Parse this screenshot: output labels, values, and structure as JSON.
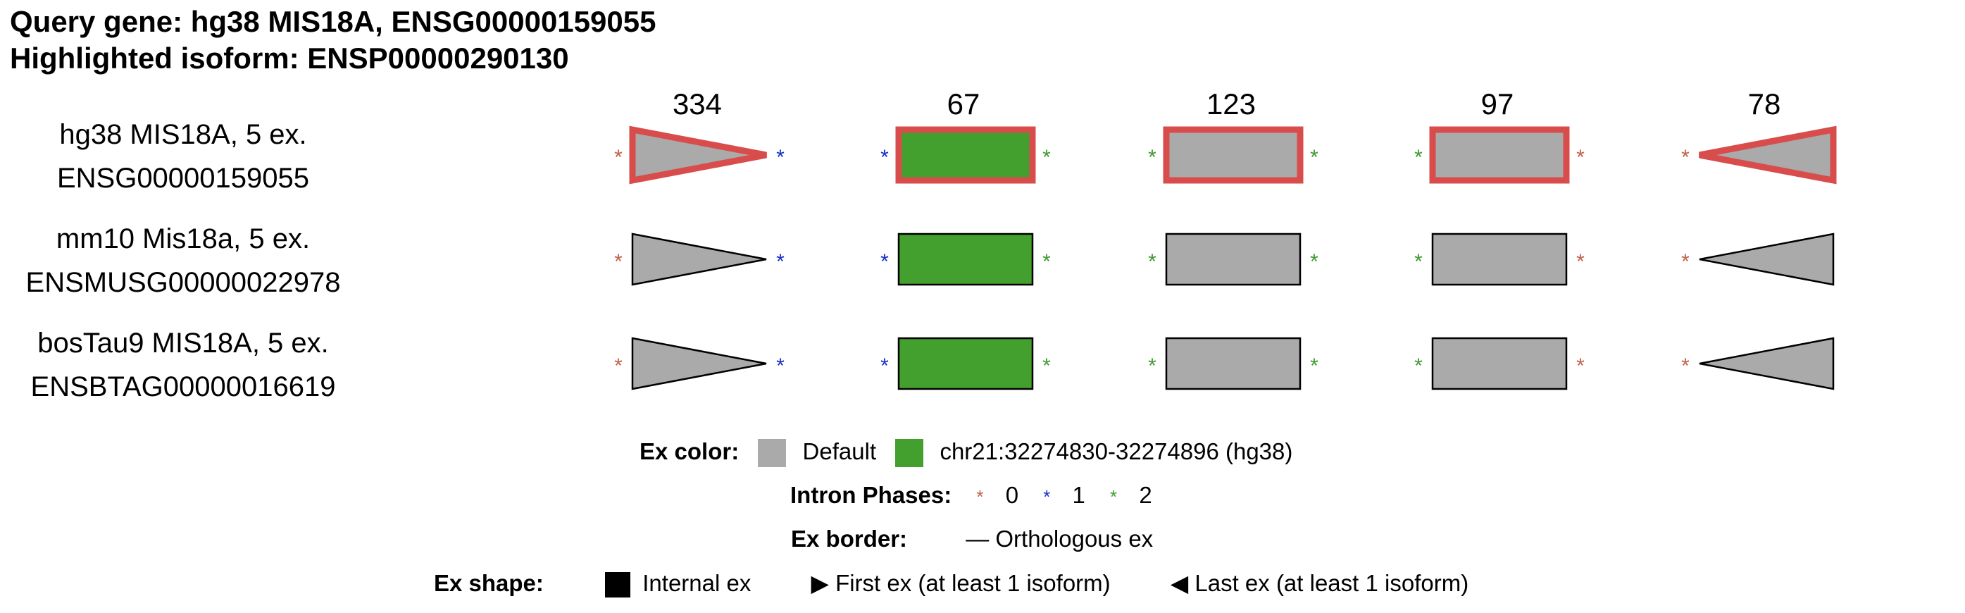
{
  "title": {
    "query_line": "Query gene: hg38 MIS18A, ENSG00000159055",
    "isoform_line": "Highlighted isoform: ENSP00000290130"
  },
  "exon_lengths": [
    "334",
    "67",
    "123",
    "97",
    "78"
  ],
  "genes": [
    {
      "name": "hg38 MIS18A, 5 ex.",
      "id": "ENSG00000159055",
      "highlighted": true
    },
    {
      "name": "mm10 Mis18a, 5 ex.",
      "id": "ENSMUSG00000022978",
      "highlighted": false
    },
    {
      "name": "bosTau9 MIS18A, 5 ex.",
      "id": "ENSBTAG00000016619",
      "highlighted": false
    }
  ],
  "exons": [
    {
      "shape": "first",
      "color": "default",
      "left_phase": "0",
      "right_phase": "1"
    },
    {
      "shape": "internal",
      "color": "green",
      "left_phase": "1",
      "right_phase": "2"
    },
    {
      "shape": "internal",
      "color": "default",
      "left_phase": "2",
      "right_phase": "2"
    },
    {
      "shape": "internal",
      "color": "default",
      "left_phase": "2",
      "right_phase": "0"
    },
    {
      "shape": "last",
      "color": "default",
      "left_phase": "0",
      "right_phase": null
    }
  ],
  "colors": {
    "default": "#aaaaaa",
    "green": "#44a02e",
    "highlight_border": "#d94c4c",
    "phase_0": "#c4604a",
    "phase_1": "#1530c8",
    "phase_2": "#3f9a30"
  },
  "legend": {
    "ex_color_label": "Ex color:",
    "default_label": "Default",
    "green_label": "chr21:32274830-32274896 (hg38)",
    "intron_phases_label": "Intron Phases:",
    "phase_0": "0",
    "phase_1": "1",
    "phase_2": "2",
    "ex_border_label": "Ex border:",
    "ortholog_label": "— Orthologous ex",
    "ex_shape_label": "Ex shape:",
    "internal_label": "Internal ex",
    "first_label": "▶ First ex (at least 1 isoform)",
    "last_label": "◀ Last ex (at least 1 isoform)"
  }
}
